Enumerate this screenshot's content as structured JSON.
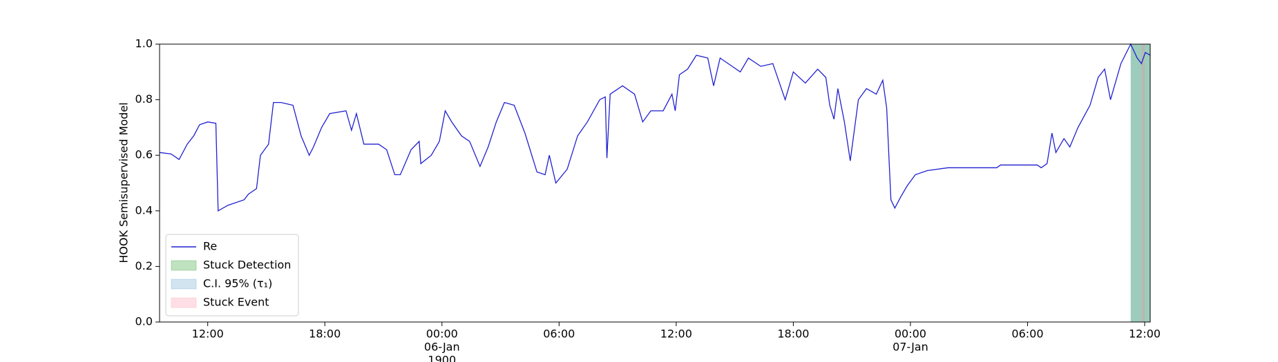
{
  "chart_data": {
    "type": "line",
    "y_label": "HOOK Semisupervised Model",
    "xlim": [
      "1900-01-05T09:32",
      "1900-01-07T12:17"
    ],
    "ylim": [
      0,
      1
    ],
    "yticks": [
      {
        "value": 0,
        "label": "0.0"
      },
      0.2,
      0.4,
      0.6,
      0.8,
      {
        "value": 1,
        "label": "1.0"
      }
    ],
    "xticks": [
      {
        "value": "1900-01-05T12:00",
        "label": [
          "12:00"
        ]
      },
      {
        "value": "1900-01-05T18:00",
        "label": [
          "18:00"
        ]
      },
      {
        "value": "1900-01-06T00:00",
        "label": [
          "00:00",
          "06-Jan",
          "1900"
        ]
      },
      {
        "value": "1900-01-06T06:00",
        "label": [
          "06:00"
        ]
      },
      {
        "value": "1900-01-06T12:00",
        "label": [
          "12:00"
        ]
      },
      {
        "value": "1900-01-06T18:00",
        "label": [
          "18:00"
        ]
      },
      {
        "value": "1900-01-07T00:00",
        "label": [
          "00:00",
          "07-Jan"
        ]
      },
      {
        "value": "1900-01-07T06:00",
        "label": [
          "06:00"
        ]
      },
      {
        "value": "1900-01-07T12:00",
        "label": [
          "12:00"
        ]
      }
    ],
    "legend_position": "lower left",
    "grid": false,
    "x": [
      "1900-01-05T09:32",
      "1900-01-05T10:07",
      "1900-01-05T10:32",
      "1900-01-05T10:57",
      "1900-01-05T11:17",
      "1900-01-05T11:35",
      "1900-01-05T12:00",
      "1900-01-05T12:25",
      "1900-01-05T12:32",
      "1900-01-05T13:02",
      "1900-01-05T13:52",
      "1900-01-05T14:05",
      "1900-01-05T14:30",
      "1900-01-05T14:42",
      "1900-01-05T15:07",
      "1900-01-05T15:22",
      "1900-01-05T15:45",
      "1900-01-05T16:22",
      "1900-01-05T16:47",
      "1900-01-05T17:12",
      "1900-01-05T17:25",
      "1900-01-05T17:50",
      "1900-01-05T18:15",
      "1900-01-05T19:05",
      "1900-01-05T19:22",
      "1900-01-05T19:37",
      "1900-01-05T20:00",
      "1900-01-05T20:45",
      "1900-01-05T21:10",
      "1900-01-05T21:35",
      "1900-01-05T21:52",
      "1900-01-05T22:25",
      "1900-01-05T22:50",
      "1900-01-05T22:55",
      "1900-01-05T23:27",
      "1900-01-05T23:52",
      "1900-01-06T00:10",
      "1900-01-06T00:30",
      "1900-01-06T01:00",
      "1900-01-06T01:25",
      "1900-01-06T01:57",
      "1900-01-06T02:22",
      "1900-01-06T02:47",
      "1900-01-06T03:12",
      "1900-01-06T03:42",
      "1900-01-06T04:15",
      "1900-01-06T04:52",
      "1900-01-06T05:17",
      "1900-01-06T05:30",
      "1900-01-06T05:50",
      "1900-01-06T06:25",
      "1900-01-06T06:57",
      "1900-01-06T07:27",
      "1900-01-06T08:05",
      "1900-01-06T08:22",
      "1900-01-06T08:27",
      "1900-01-06T08:37",
      "1900-01-06T09:15",
      "1900-01-06T09:52",
      "1900-01-06T10:17",
      "1900-01-06T10:42",
      "1900-01-06T11:20",
      "1900-01-06T11:47",
      "1900-01-06T11:57",
      "1900-01-06T12:10",
      "1900-01-06T12:35",
      "1900-01-06T13:02",
      "1900-01-06T13:37",
      "1900-01-06T13:55",
      "1900-01-06T14:15",
      "1900-01-06T14:52",
      "1900-01-06T15:17",
      "1900-01-06T15:42",
      "1900-01-06T16:20",
      "1900-01-06T16:57",
      "1900-01-06T17:35",
      "1900-01-06T18:00",
      "1900-01-06T18:37",
      "1900-01-06T19:15",
      "1900-01-06T19:40",
      "1900-01-06T19:52",
      "1900-01-06T20:05",
      "1900-01-06T20:17",
      "1900-01-06T20:37",
      "1900-01-06T20:55",
      "1900-01-06T21:20",
      "1900-01-06T21:45",
      "1900-01-06T22:15",
      "1900-01-06T22:35",
      "1900-01-06T22:47",
      "1900-01-06T23:00",
      "1900-01-06T23:12",
      "1900-01-06T23:30",
      "1900-01-06T23:50",
      "1900-01-07T00:15",
      "1900-01-07T00:52",
      "1900-01-07T01:55",
      "1900-01-07T04:25",
      "1900-01-07T04:37",
      "1900-01-07T06:30",
      "1900-01-07T06:42",
      "1900-01-07T07:00",
      "1900-01-07T07:15",
      "1900-01-07T07:27",
      "1900-01-07T07:52",
      "1900-01-07T08:10",
      "1900-01-07T08:35",
      "1900-01-07T09:12",
      "1900-01-07T09:37",
      "1900-01-07T09:57",
      "1900-01-07T10:15",
      "1900-01-07T10:47",
      "1900-01-07T11:17",
      "1900-01-07T11:37",
      "1900-01-07T11:50",
      "1900-01-07T12:02",
      "1900-01-07T12:17"
    ],
    "series": [
      {
        "name": "Re",
        "color": "#1f1fd0",
        "values": [
          0.61,
          0.605,
          0.585,
          0.64,
          0.67,
          0.71,
          0.72,
          0.715,
          0.4,
          0.42,
          0.44,
          0.46,
          0.48,
          0.6,
          0.64,
          0.79,
          0.79,
          0.78,
          0.67,
          0.6,
          0.63,
          0.7,
          0.75,
          0.76,
          0.69,
          0.75,
          0.64,
          0.64,
          0.62,
          0.53,
          0.53,
          0.62,
          0.65,
          0.57,
          0.6,
          0.65,
          0.76,
          0.72,
          0.67,
          0.65,
          0.56,
          0.63,
          0.72,
          0.79,
          0.78,
          0.68,
          0.54,
          0.53,
          0.6,
          0.5,
          0.55,
          0.67,
          0.72,
          0.8,
          0.81,
          0.59,
          0.82,
          0.85,
          0.82,
          0.72,
          0.76,
          0.76,
          0.82,
          0.76,
          0.89,
          0.91,
          0.96,
          0.95,
          0.85,
          0.95,
          0.92,
          0.9,
          0.95,
          0.92,
          0.93,
          0.8,
          0.9,
          0.86,
          0.91,
          0.88,
          0.78,
          0.73,
          0.84,
          0.72,
          0.58,
          0.8,
          0.84,
          0.82,
          0.87,
          0.77,
          0.44,
          0.41,
          0.45,
          0.49,
          0.53,
          0.545,
          0.555,
          0.555,
          0.565,
          0.565,
          0.555,
          0.57,
          0.68,
          0.61,
          0.66,
          0.63,
          0.7,
          0.78,
          0.88,
          0.91,
          0.8,
          0.93,
          1.0,
          0.95,
          0.93,
          0.97,
          0.96
        ]
      }
    ],
    "spans": [
      {
        "name": "Stuck Detection",
        "color": "#2ca02c",
        "alpha": 0.3,
        "start": "1900-01-07T11:17",
        "end": "1900-01-07T12:17"
      },
      {
        "name": "C.I. 95% (τ₁)",
        "color": "#1f77b4",
        "alpha": 0.2,
        "start": "1900-01-07T11:17",
        "end": "1900-01-07T12:17"
      },
      {
        "name": "Stuck Event",
        "color": "#ff8096",
        "alpha": 0.25,
        "start": "1900-01-07T11:50",
        "end": "1900-01-07T12:00"
      }
    ]
  }
}
